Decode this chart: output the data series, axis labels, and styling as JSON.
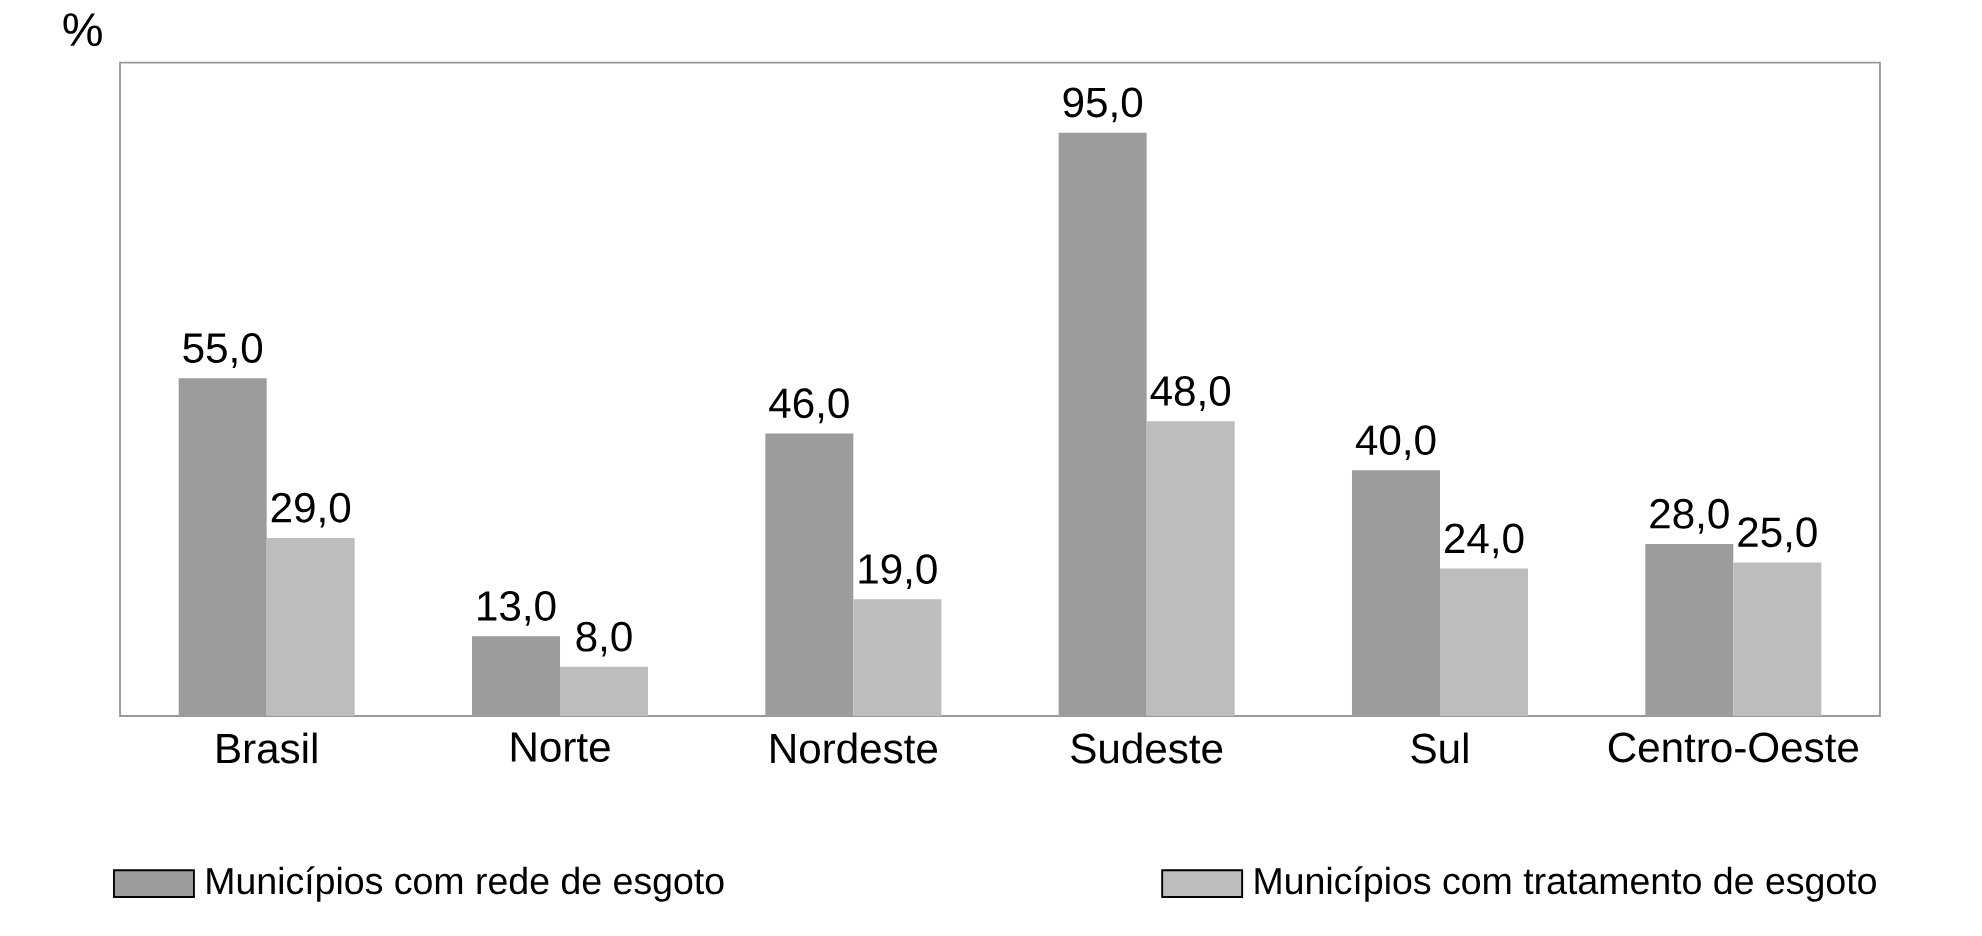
{
  "chart_data": {
    "type": "bar",
    "ylabel": "%",
    "categories": [
      "Brasil",
      "Norte",
      "Nordeste",
      "Sudeste",
      "Sul",
      "Centro-Oeste"
    ],
    "series": [
      {
        "name": "Municípios com rede de esgoto",
        "color": "#9c9c9c",
        "values": [
          55.0,
          13.0,
          46.0,
          95.0,
          40.0,
          28.0
        ],
        "value_labels": [
          "55,0",
          "13,0",
          "46,0",
          "95,0",
          "40,0",
          "28,0"
        ]
      },
      {
        "name": "Municípios com tratamento de esgoto",
        "color": "#bdbdbd",
        "values": [
          29.0,
          8.0,
          19.0,
          48.0,
          24.0,
          25.0
        ],
        "value_labels": [
          "29,0",
          "8,0",
          "19,0",
          "48,0",
          "24,0",
          "25,0"
        ]
      }
    ],
    "legend": "bottom"
  }
}
